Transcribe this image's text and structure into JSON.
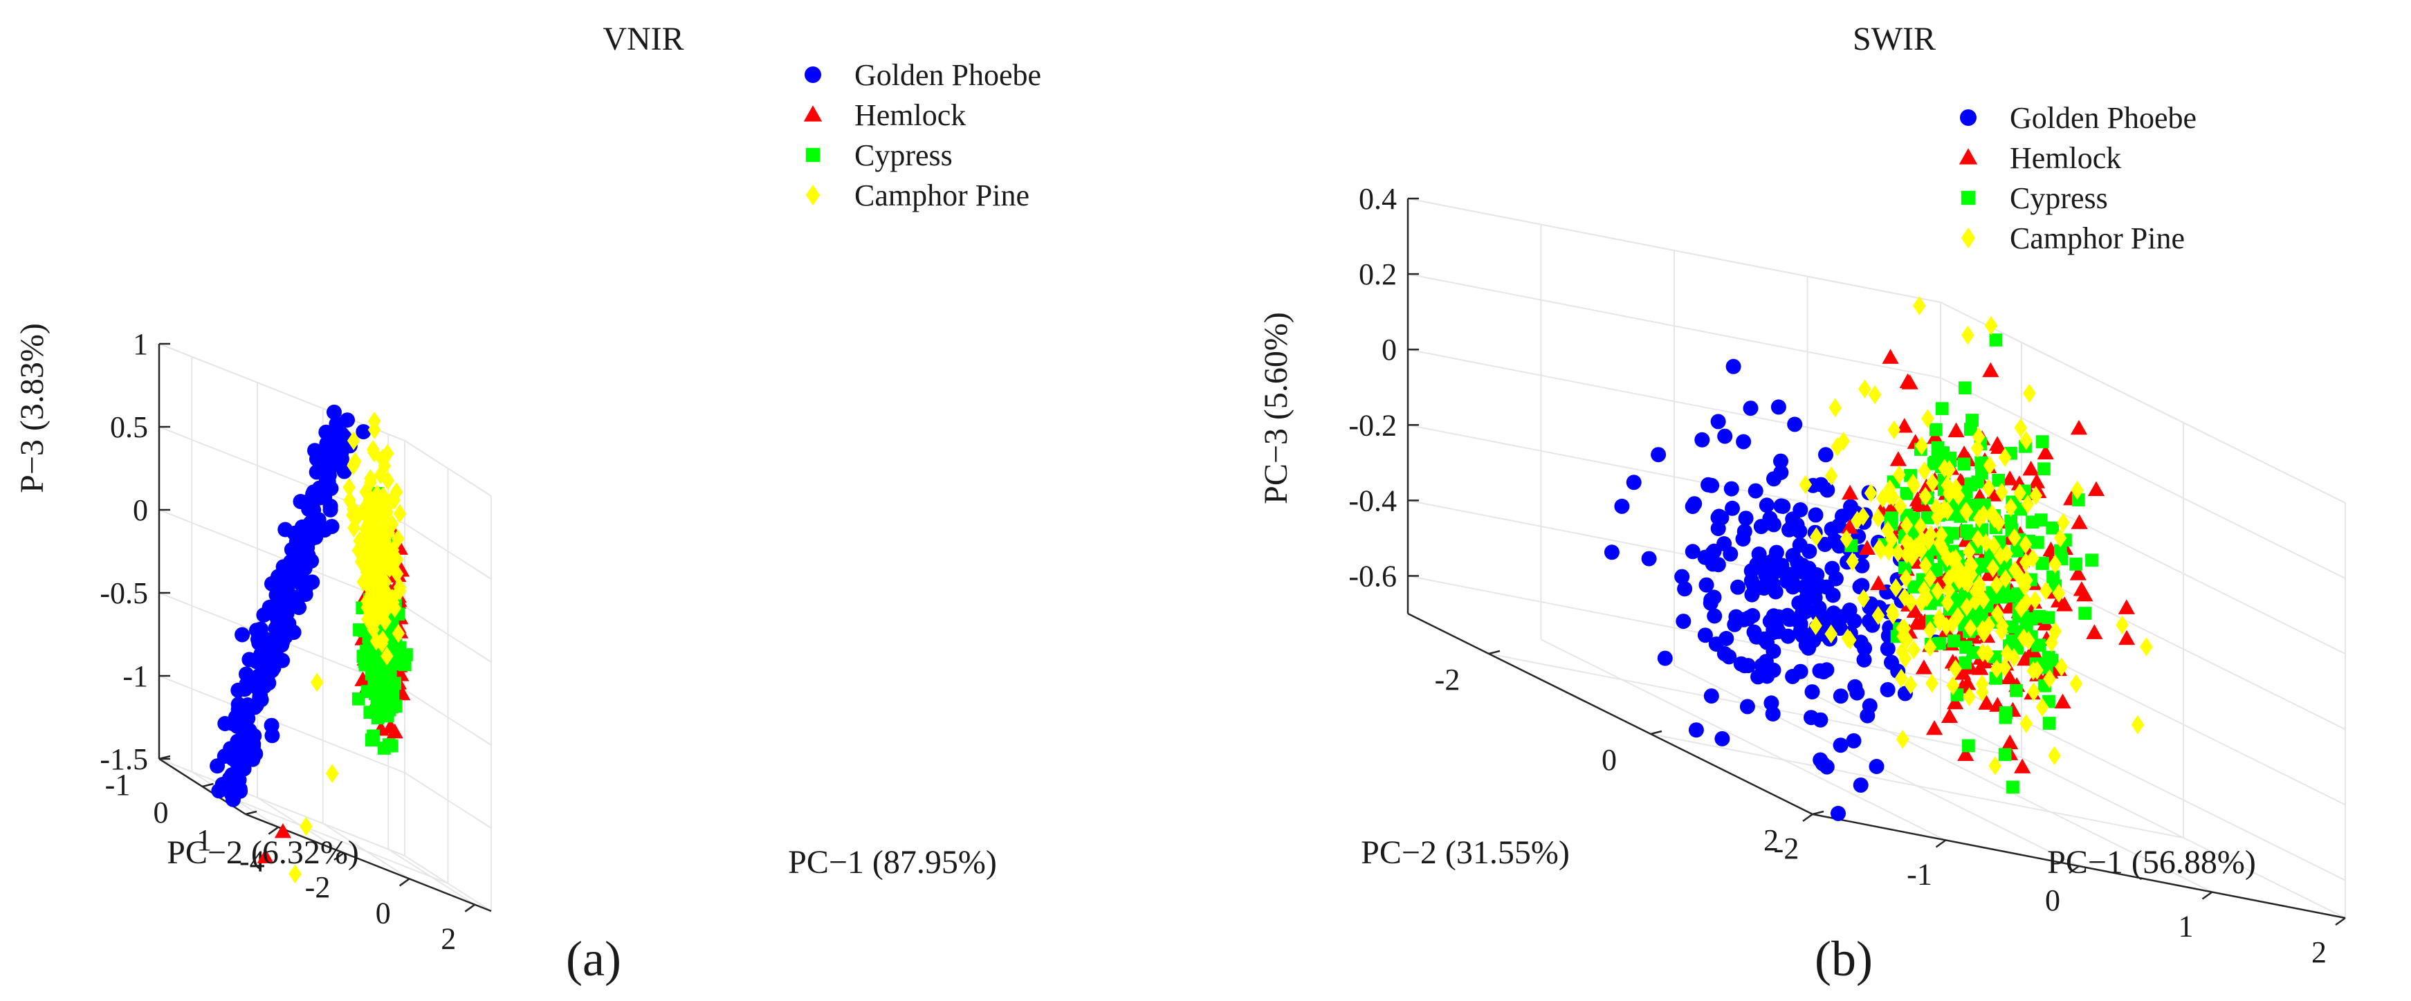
{
  "chart_data": [
    {
      "type": "scatter",
      "subtype": "3d-scatter",
      "panel_label": "(a)",
      "title": "VNIR",
      "xlabel": "PC−1 (87.95%)",
      "ylabel": "PC−2 (6.32%)",
      "zlabel": "P−3 (3.83%)",
      "xlim": [
        -5,
        2.5
      ],
      "ylim": [
        -1,
        1
      ],
      "zlim": [
        -1.5,
        1
      ],
      "xticks": [
        -4,
        -2,
        0,
        2
      ],
      "xtick_labels": [
        "-4",
        "-2",
        "0",
        "2"
      ],
      "yticks": [
        -1,
        0,
        1
      ],
      "ytick_labels": [
        "-1",
        "0",
        "1"
      ],
      "zticks": [
        -1.5,
        -1,
        -0.5,
        0,
        0.5,
        1
      ],
      "ztick_labels": [
        "-1.5",
        "-1",
        "-0.5",
        "0",
        "0.5",
        "1"
      ],
      "legend": {
        "position": "top-right",
        "entries": [
          "Golden Phoebe",
          "Hemlock",
          "Cypress",
          "Camphor Pine"
        ]
      },
      "grid": true,
      "series": [
        {
          "name": "Golden Phoebe",
          "color": "#0000ff",
          "marker": "circle",
          "count": 260,
          "cluster": {
            "x": [
              -4.3,
              -0.9
            ],
            "y": [
              -0.1,
              0.3
            ],
            "z": [
              -1.4,
              1.0
            ],
            "shape": "band"
          },
          "points": [
            [
              -4.3,
              0.1,
              -1.38
            ],
            [
              -3.5,
              0.2,
              -0.8
            ],
            [
              -2.7,
              0.1,
              -0.15
            ],
            [
              -2.0,
              0.0,
              0.45
            ],
            [
              -1.2,
              0.2,
              0.95
            ]
          ]
        },
        {
          "name": "Hemlock",
          "color": "#ff0000",
          "marker": "triangle",
          "count": 200,
          "cluster": {
            "x": [
              -0.3,
              0.5
            ],
            "y": [
              0.1,
              0.5
            ],
            "z": [
              -0.6,
              0.4
            ],
            "shape": "blob"
          },
          "points": [
            [
              -3.2,
              0.5,
              -1.55
            ],
            [
              -3.6,
              0.4,
              -1.75
            ]
          ]
        },
        {
          "name": "Cypress",
          "color": "#00ff00",
          "marker": "square",
          "count": 200,
          "cluster": {
            "x": [
              0.0,
              0.8
            ],
            "y": [
              -0.2,
              0.3
            ],
            "z": [
              -0.7,
              0.2
            ],
            "shape": "blob"
          },
          "points": []
        },
        {
          "name": "Camphor Pine",
          "color": "#ffff00",
          "marker": "diamond",
          "count": 180,
          "cluster": {
            "x": [
              -0.2,
              0.7
            ],
            "y": [
              -0.3,
              0.4
            ],
            "z": [
              -0.2,
              0.9
            ],
            "shape": "blob"
          },
          "points": [
            [
              -1.5,
              0.0,
              -0.6
            ],
            [
              -1.3,
              0.2,
              -1.1
            ],
            [
              -1.7,
              -0.1,
              -1.5
            ],
            [
              -2.3,
              0.1,
              -1.8
            ]
          ]
        }
      ]
    },
    {
      "type": "scatter",
      "subtype": "3d-scatter",
      "panel_label": "(b)",
      "title": "SWIR",
      "xlabel": "PC−1 (56.88%)",
      "ylabel": "PC−2 (31.55%)",
      "zlabel": "PC−3 (5.60%)",
      "xlim": [
        -2,
        2
      ],
      "ylim": [
        -3,
        2
      ],
      "zlim": [
        -0.7,
        0.4
      ],
      "xticks": [
        -2,
        -1,
        0,
        1,
        2
      ],
      "xtick_labels": [
        "-2",
        "-1",
        "0",
        "1",
        "2"
      ],
      "yticks": [
        -2,
        0,
        2
      ],
      "ytick_labels": [
        "-2",
        "0",
        "2"
      ],
      "zticks": [
        -0.6,
        -0.4,
        -0.2,
        0,
        0.2,
        0.4
      ],
      "ztick_labels": [
        "-0.6",
        "-0.4",
        "-0.2",
        "0",
        "0.2",
        "0.4"
      ],
      "legend": {
        "position": "top-right",
        "entries": [
          "Golden Phoebe",
          "Hemlock",
          "Cypress",
          "Camphor Pine"
        ]
      },
      "grid": true,
      "series": [
        {
          "name": "Golden Phoebe",
          "color": "#0000ff",
          "marker": "circle",
          "count": 260,
          "cluster": {
            "x": [
              -1.6,
              -0.2
            ],
            "y": [
              -1.0,
              1.0
            ],
            "z": [
              -0.65,
              0.12
            ],
            "shape": "blob"
          },
          "points": []
        },
        {
          "name": "Hemlock",
          "color": "#ff0000",
          "marker": "triangle",
          "count": 200,
          "cluster": {
            "x": [
              -0.3,
              0.9
            ],
            "y": [
              -0.5,
              1.2
            ],
            "z": [
              -0.45,
              0.3
            ],
            "shape": "blob"
          },
          "points": []
        },
        {
          "name": "Cypress",
          "color": "#00ff00",
          "marker": "square",
          "count": 200,
          "cluster": {
            "x": [
              -0.2,
              0.9
            ],
            "y": [
              -0.5,
              1.0
            ],
            "z": [
              -0.4,
              0.28
            ],
            "shape": "blob"
          },
          "points": []
        },
        {
          "name": "Camphor Pine",
          "color": "#ffff00",
          "marker": "diamond",
          "count": 200,
          "cluster": {
            "x": [
              -0.4,
              1.0
            ],
            "y": [
              -0.9,
              0.9
            ],
            "z": [
              -0.55,
              0.3
            ],
            "shape": "blob"
          },
          "points": [
            [
              1.6,
              0.2,
              -0.2
            ],
            [
              1.9,
              -0.4,
              -0.45
            ],
            [
              1.7,
              -1.1,
              -0.62
            ]
          ]
        }
      ]
    }
  ]
}
